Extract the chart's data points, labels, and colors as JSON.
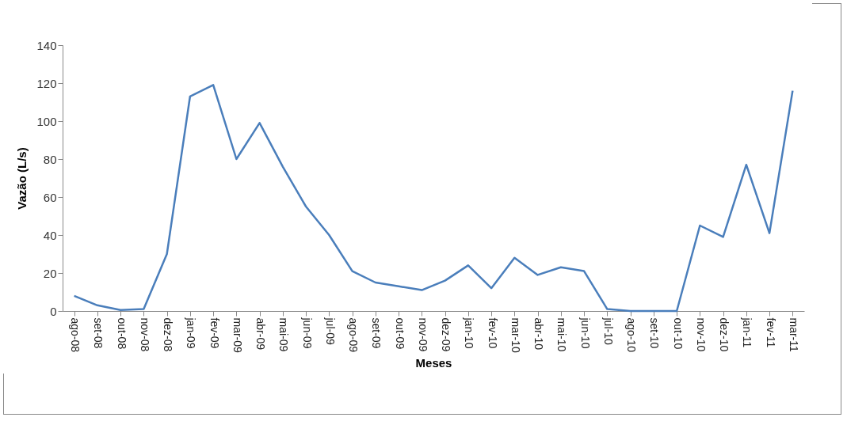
{
  "chart_data": {
    "type": "line",
    "xlabel": "Meses",
    "ylabel": "Vazão (L/s)",
    "categories": [
      "ago-08",
      "set-08",
      "out-08",
      "nov-08",
      "dez-08",
      "jan-09",
      "fev-09",
      "mar-09",
      "abr-09",
      "mai-09",
      "jun-09",
      "jul-09",
      "ago-09",
      "set-09",
      "out-09",
      "nov-09",
      "dez-09",
      "jan-10",
      "fev-10",
      "mar-10",
      "abr-10",
      "mai-10",
      "jun-10",
      "jul-10",
      "ago-10",
      "set-10",
      "out-10",
      "nov-10",
      "dez-10",
      "jan-11",
      "fev-11",
      "mar-11"
    ],
    "series": [
      {
        "color": "#4a7ebb",
        "values": [
          8,
          3,
          0.5,
          1,
          30,
          113,
          119,
          80,
          99,
          76,
          55,
          40,
          21,
          15,
          13,
          11,
          16,
          24,
          12,
          28,
          19,
          23,
          21,
          1,
          0,
          0,
          0,
          45,
          39,
          77,
          41,
          116
        ]
      }
    ],
    "ylim": [
      0,
      140
    ],
    "yticks": [
      0,
      20,
      40,
      60,
      80,
      100,
      120,
      140
    ],
    "grid": false,
    "legend": false,
    "marker": "none",
    "line_style": "solid"
  }
}
